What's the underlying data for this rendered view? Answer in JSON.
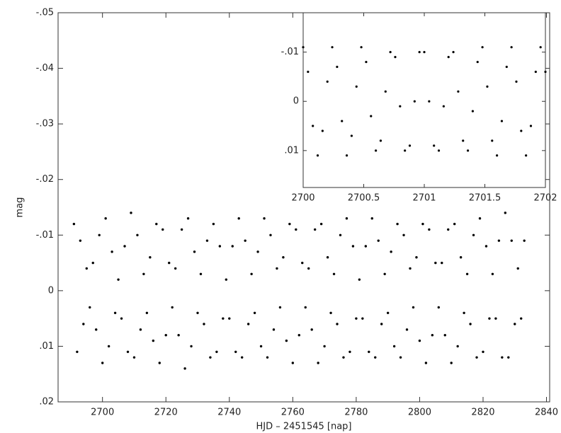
{
  "chart_data": [
    {
      "type": "scatter",
      "xlabel": "HJD – 2451545 [nap]",
      "ylabel": "mag",
      "color": "#000000",
      "xlim": [
        2686,
        2841
      ],
      "ylim": [
        -0.05,
        0.02
      ],
      "xticks": [
        2700,
        2720,
        2740,
        2760,
        2780,
        2800,
        2820,
        2840
      ],
      "yticks": [
        {
          "value": -0.05,
          "label": "-.05"
        },
        {
          "value": -0.04,
          "label": "-.04"
        },
        {
          "value": -0.03,
          "label": "-.03"
        },
        {
          "value": -0.02,
          "label": "-.02"
        },
        {
          "value": -0.01,
          "label": "-.01"
        },
        0,
        {
          "value": 0.01,
          "label": ".01"
        },
        {
          "value": 0.02,
          "label": ".02"
        }
      ],
      "x": [
        2691,
        2692,
        2693,
        2694,
        2695,
        2696,
        2697,
        2698,
        2699,
        2700,
        2701,
        2702,
        2703,
        2704,
        2705,
        2706,
        2707,
        2708,
        2709,
        2710,
        2711,
        2712,
        2713,
        2714,
        2715,
        2716,
        2717,
        2718,
        2719,
        2720,
        2721,
        2722,
        2723,
        2724,
        2725,
        2726,
        2727,
        2728,
        2729,
        2730,
        2731,
        2732,
        2733,
        2734,
        2735,
        2736,
        2737,
        2738,
        2739,
        2740,
        2741,
        2742,
        2743,
        2744,
        2745,
        2746,
        2747,
        2748,
        2749,
        2750,
        2751,
        2752,
        2753,
        2754,
        2755,
        2756,
        2757,
        2758,
        2759,
        2760,
        2761,
        2762,
        2763,
        2764,
        2765,
        2766,
        2767,
        2768,
        2769,
        2770,
        2771,
        2772,
        2773,
        2774,
        2775,
        2776,
        2777,
        2778,
        2779,
        2780,
        2781,
        2782,
        2783,
        2784,
        2785,
        2786,
        2787,
        2788,
        2789,
        2790,
        2791,
        2792,
        2793,
        2794,
        2795,
        2796,
        2797,
        2798,
        2799,
        2800,
        2801,
        2802,
        2803,
        2804,
        2805,
        2806,
        2807,
        2808,
        2809,
        2810,
        2811,
        2812,
        2813,
        2814,
        2815,
        2816,
        2817,
        2818,
        2819,
        2820,
        2821,
        2822,
        2823,
        2824,
        2825,
        2826,
        2827,
        2828,
        2829,
        2830,
        2831,
        2832,
        2833
      ],
      "values": [
        -0.012,
        0.011,
        -0.009,
        0.006,
        -0.004,
        0.003,
        -0.005,
        0.007,
        -0.01,
        0.013,
        -0.013,
        0.01,
        -0.007,
        0.004,
        -0.002,
        0.005,
        -0.008,
        0.011,
        -0.014,
        0.012,
        -0.01,
        0.007,
        -0.003,
        0.004,
        -0.006,
        0.009,
        -0.012,
        0.013,
        -0.011,
        0.008,
        -0.005,
        0.003,
        -0.004,
        0.008,
        -0.011,
        0.014,
        -0.013,
        0.01,
        -0.007,
        0.004,
        -0.003,
        0.006,
        -0.009,
        0.012,
        -0.012,
        0.011,
        -0.008,
        0.005,
        -0.002,
        0.005,
        -0.008,
        0.011,
        -0.013,
        0.012,
        -0.009,
        0.006,
        -0.003,
        0.004,
        -0.007,
        0.01,
        -0.013,
        0.012,
        -0.01,
        0.007,
        -0.004,
        0.003,
        -0.006,
        0.009,
        -0.012,
        0.013,
        -0.011,
        0.008,
        -0.005,
        0.003,
        -0.004,
        0.007,
        -0.011,
        0.013,
        -0.012,
        0.01,
        -0.006,
        0.004,
        -0.003,
        0.006,
        -0.01,
        0.012,
        -0.013,
        0.011,
        -0.008,
        0.005,
        -0.002,
        0.005,
        -0.008,
        0.011,
        -0.013,
        0.012,
        -0.009,
        0.006,
        -0.003,
        0.004,
        -0.007,
        0.01,
        -0.012,
        0.012,
        -0.01,
        0.007,
        -0.004,
        0.003,
        -0.006,
        0.009,
        -0.012,
        0.013,
        -0.011,
        0.008,
        -0.005,
        0.003,
        -0.005,
        0.008,
        -0.011,
        0.013,
        -0.012,
        0.01,
        -0.006,
        0.004,
        -0.003,
        0.006,
        -0.01,
        0.012,
        -0.013,
        0.011,
        -0.008,
        0.005,
        -0.003,
        0.005,
        -0.009,
        0.012,
        -0.014,
        0.012,
        -0.009,
        0.006,
        -0.004,
        0.005,
        -0.009
      ]
    },
    {
      "type": "scatter",
      "color": "#000000",
      "xlim": [
        2700,
        2702
      ],
      "ylim": [
        -0.018,
        0.0175
      ],
      "xticks": [
        2700,
        2700.5,
        2701,
        2701.5,
        2702
      ],
      "yticks": [
        {
          "value": -0.01,
          "label": "-.01"
        },
        0,
        {
          "value": 0.01,
          "label": ".01"
        }
      ],
      "x": [
        2700,
        2700.04,
        2700.08,
        2700.12,
        2700.16,
        2700.2,
        2700.24,
        2700.28,
        2700.32,
        2700.36,
        2700.4,
        2700.44,
        2700.48,
        2700.52,
        2700.56,
        2700.6,
        2700.64,
        2700.68,
        2700.72,
        2700.76,
        2700.8,
        2700.84,
        2700.88,
        2700.92,
        2700.96,
        2701,
        2701.04,
        2701.08,
        2701.12,
        2701.16,
        2701.2,
        2701.24,
        2701.28,
        2701.32,
        2701.36,
        2701.4,
        2701.44,
        2701.48,
        2701.52,
        2701.56,
        2701.6,
        2701.64,
        2701.68,
        2701.72,
        2701.76,
        2701.8,
        2701.84,
        2701.88,
        2701.92,
        2701.96,
        2702
      ],
      "values": [
        -0.011,
        -0.006,
        0.005,
        0.011,
        0.006,
        -0.004,
        -0.011,
        -0.007,
        0.004,
        0.011,
        0.007,
        -0.003,
        -0.011,
        -0.008,
        0.003,
        0.01,
        0.008,
        -0.002,
        -0.01,
        -0.009,
        0.001,
        0.01,
        0.009,
        0,
        -0.01,
        -0.01,
        0,
        0.009,
        0.01,
        0.001,
        -0.009,
        -0.01,
        -0.002,
        0.008,
        0.01,
        0.002,
        -0.008,
        -0.011,
        -0.003,
        0.008,
        0.011,
        0.004,
        -0.007,
        -0.011,
        -0.004,
        0.006,
        0.011,
        0.005,
        -0.006,
        -0.011,
        -0.006
      ]
    }
  ]
}
